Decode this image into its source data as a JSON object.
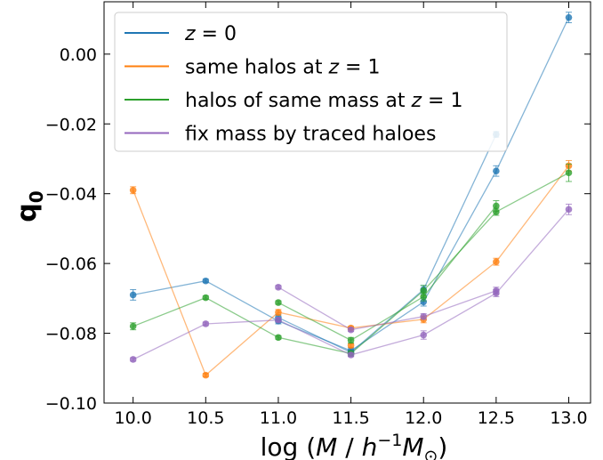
{
  "chart_data": {
    "type": "line",
    "xlabel": "log (M / h⁻¹M☉)",
    "ylabel": "q₀",
    "xlim": [
      9.8,
      13.15
    ],
    "ylim": [
      -0.1,
      0.015
    ],
    "xticks": [
      10.0,
      10.5,
      11.0,
      11.5,
      12.0,
      12.5,
      13.0
    ],
    "xtick_labels": [
      "10.0",
      "10.5",
      "11.0",
      "11.5",
      "12.0",
      "12.5",
      "13.0"
    ],
    "yticks": [
      0.0,
      -0.02,
      -0.04,
      -0.06,
      -0.08,
      -0.1
    ],
    "ytick_labels": [
      "0.00",
      "−0.02",
      "−0.04",
      "−0.06",
      "−0.08",
      "−0.10"
    ],
    "legend_position": "top-left",
    "grid": false,
    "series": [
      {
        "name": "z = 0",
        "label_parts": [
          "z",
          " = 0"
        ],
        "color": "#1f77b4",
        "lines": [
          {
            "x": [
              10.0,
              10.5,
              11.0,
              11.5,
              12.0,
              12.5,
              13.0
            ],
            "y": [
              -0.069,
              -0.065,
              -0.0765,
              -0.085,
              -0.071,
              -0.0335,
              0.0105
            ]
          },
          {
            "x": [
              11.0,
              11.5,
              12.0,
              12.5
            ],
            "y": [
              -0.0755,
              -0.0855,
              -0.0675,
              -0.023
            ]
          }
        ],
        "points": [
          {
            "x": 10.0,
            "y": -0.069,
            "err": 0.0015
          },
          {
            "x": 10.5,
            "y": -0.065,
            "err": 0.0005
          },
          {
            "x": 11.0,
            "y": -0.0765,
            "err": 0.0008
          },
          {
            "x": 11.0,
            "y": -0.0755,
            "err": 0.0008
          },
          {
            "x": 11.5,
            "y": -0.085,
            "err": 0.0008
          },
          {
            "x": 11.5,
            "y": -0.0855,
            "err": 0.0008
          },
          {
            "x": 12.0,
            "y": -0.071,
            "err": 0.0012
          },
          {
            "x": 12.0,
            "y": -0.0675,
            "err": 0.0012
          },
          {
            "x": 12.5,
            "y": -0.0335,
            "err": 0.0015
          },
          {
            "x": 12.5,
            "y": -0.023,
            "err": 0.0008
          },
          {
            "x": 13.0,
            "y": 0.0105,
            "err": 0.0015
          }
        ]
      },
      {
        "name": "same halos at z = 1",
        "label_parts": [
          "same halos at ",
          "z",
          " = 1"
        ],
        "color": "#ff7f0e",
        "lines": [
          {
            "x": [
              10.0,
              10.5,
              11.0,
              11.5,
              12.0,
              12.5,
              13.0
            ],
            "y": [
              -0.039,
              -0.092,
              -0.074,
              -0.0785,
              -0.076,
              -0.0595,
              -0.032
            ]
          }
        ],
        "points": [
          {
            "x": 10.0,
            "y": -0.039,
            "err": 0.001
          },
          {
            "x": 10.5,
            "y": -0.092,
            "err": 0.0005
          },
          {
            "x": 11.0,
            "y": -0.074,
            "err": 0.0008
          },
          {
            "x": 11.5,
            "y": -0.0785,
            "err": 0.0005
          },
          {
            "x": 11.5,
            "y": -0.0835,
            "err": 0.0005
          },
          {
            "x": 12.0,
            "y": -0.076,
            "err": 0.001
          },
          {
            "x": 12.5,
            "y": -0.0595,
            "err": 0.001
          },
          {
            "x": 13.0,
            "y": -0.032,
            "err": 0.0015
          }
        ]
      },
      {
        "name": "halos of same mass at z = 1",
        "label_parts": [
          "halos of same mass at ",
          "z",
          " = 1"
        ],
        "color": "#2ca02c",
        "lines": [
          {
            "x": [
              10.0,
              10.5,
              11.0,
              11.5,
              12.0,
              12.5,
              13.0
            ],
            "y": [
              -0.078,
              -0.0698,
              -0.0812,
              -0.0858,
              -0.0678,
              -0.0452,
              -0.034
            ]
          },
          {
            "x": [
              11.0,
              11.5,
              12.0,
              12.5
            ],
            "y": [
              -0.0712,
              -0.082,
              -0.0695,
              -0.0435
            ]
          }
        ],
        "points": [
          {
            "x": 10.0,
            "y": -0.078,
            "err": 0.001
          },
          {
            "x": 10.5,
            "y": -0.0698,
            "err": 0.0005
          },
          {
            "x": 11.0,
            "y": -0.0812,
            "err": 0.0005
          },
          {
            "x": 11.0,
            "y": -0.0712,
            "err": 0.0005
          },
          {
            "x": 11.5,
            "y": -0.0858,
            "err": 0.0008
          },
          {
            "x": 11.5,
            "y": -0.082,
            "err": 0.0008
          },
          {
            "x": 12.0,
            "y": -0.0678,
            "err": 0.0015
          },
          {
            "x": 12.0,
            "y": -0.0695,
            "err": 0.0012
          },
          {
            "x": 12.5,
            "y": -0.0452,
            "err": 0.001
          },
          {
            "x": 12.5,
            "y": -0.0435,
            "err": 0.0015
          },
          {
            "x": 13.0,
            "y": -0.034,
            "err": 0.0025
          }
        ]
      },
      {
        "name": "fix mass by traced haloes",
        "label_parts": [
          "fix mass by traced haloes"
        ],
        "color": "#9467bd",
        "lines": [
          {
            "x": [
              10.0,
              10.5,
              11.0,
              11.5,
              12.0,
              12.5,
              13.0
            ],
            "y": [
              -0.0875,
              -0.0773,
              -0.0762,
              -0.0862,
              -0.0805,
              -0.0685,
              -0.0445
            ]
          },
          {
            "x": [
              11.0,
              11.5,
              12.0,
              12.5
            ],
            "y": [
              -0.0668,
              -0.079,
              -0.0752,
              -0.0678
            ]
          }
        ],
        "points": [
          {
            "x": 10.0,
            "y": -0.0875,
            "err": 0.0005
          },
          {
            "x": 10.5,
            "y": -0.0773,
            "err": 0.0005
          },
          {
            "x": 11.0,
            "y": -0.0762,
            "err": 0.0005
          },
          {
            "x": 11.0,
            "y": -0.0668,
            "err": 0.0005
          },
          {
            "x": 11.5,
            "y": -0.0862,
            "err": 0.0005
          },
          {
            "x": 11.5,
            "y": -0.079,
            "err": 0.0005
          },
          {
            "x": 12.0,
            "y": -0.0805,
            "err": 0.0012
          },
          {
            "x": 12.0,
            "y": -0.0752,
            "err": 0.0008
          },
          {
            "x": 12.5,
            "y": -0.0685,
            "err": 0.001
          },
          {
            "x": 12.5,
            "y": -0.0678,
            "err": 0.001
          },
          {
            "x": 13.0,
            "y": -0.0445,
            "err": 0.0015
          }
        ]
      }
    ]
  }
}
